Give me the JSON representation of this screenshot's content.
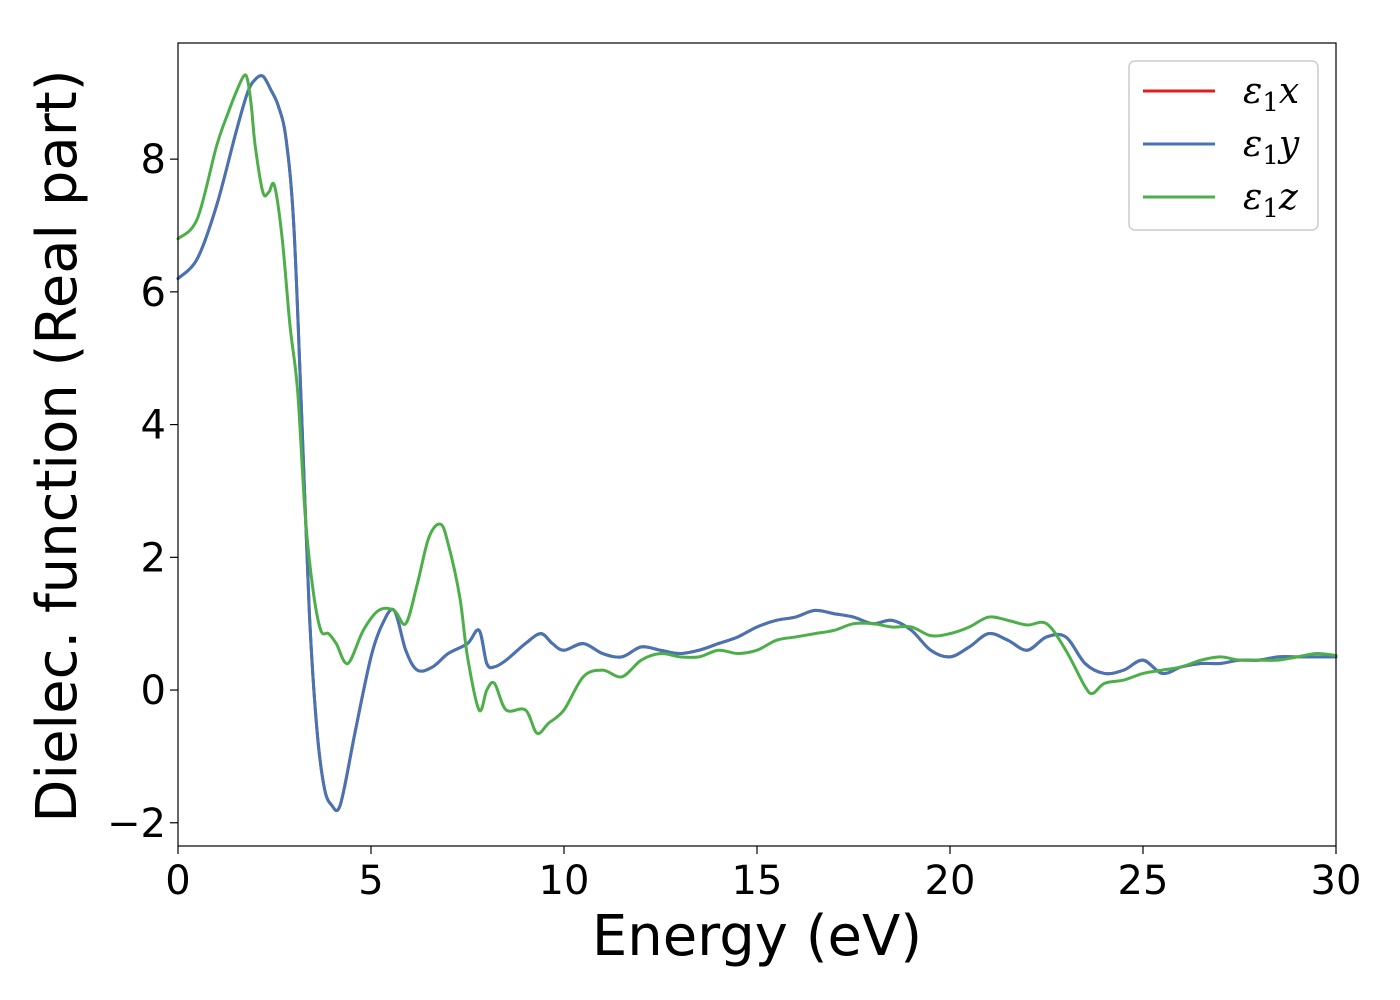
{
  "chart_data": {
    "type": "line",
    "title": "",
    "xlabel": "Energy (eV)",
    "ylabel": "Dielec. function (Real part)",
    "xlim": [
      0,
      30
    ],
    "ylim": [
      -2.35,
      9.75
    ],
    "xticks": [
      0,
      5,
      10,
      15,
      20,
      25,
      30
    ],
    "xtick_labels": [
      "0",
      "5",
      "10",
      "15",
      "20",
      "25",
      "30"
    ],
    "yticks": [
      -2,
      0,
      2,
      4,
      6,
      8
    ],
    "ytick_labels": [
      "−2",
      "0",
      "2",
      "4",
      "6",
      "8"
    ],
    "grid": false,
    "legend_position": "top-right",
    "series": [
      {
        "name": "ε1x",
        "legend_base": "ε",
        "legend_sub": "1",
        "legend_var": "x",
        "color": "#e41a1c",
        "x": [
          0,
          0.5,
          1.0,
          1.5,
          1.8,
          2.0,
          2.2,
          2.4,
          2.6,
          2.8,
          3.0,
          3.2,
          3.4,
          3.6,
          3.8,
          4.0,
          4.15,
          4.3,
          4.6,
          5.0,
          5.3,
          5.6,
          5.9,
          6.2,
          6.6,
          7.0,
          7.5,
          7.8,
          8.0,
          8.2,
          8.5,
          9.0,
          9.4,
          9.7,
          10.0,
          10.5,
          11.0,
          11.5,
          12.0,
          12.5,
          13.0,
          13.5,
          14.0,
          14.5,
          15.0,
          15.5,
          16.0,
          16.5,
          17.0,
          17.5,
          18.0,
          18.5,
          19.0,
          19.5,
          20.0,
          20.5,
          21.0,
          21.5,
          22.0,
          22.5,
          23.0,
          23.5,
          24.0,
          24.5,
          25.0,
          25.5,
          26.0,
          26.5,
          27.0,
          27.5,
          28.0,
          28.5,
          29.0,
          29.5,
          30.0
        ],
        "y": [
          6.2,
          6.5,
          7.3,
          8.4,
          9.0,
          9.2,
          9.25,
          9.05,
          8.8,
          8.3,
          7.0,
          4.2,
          1.2,
          -0.6,
          -1.5,
          -1.75,
          -1.8,
          -1.5,
          -0.6,
          0.5,
          1.0,
          1.2,
          0.6,
          0.3,
          0.35,
          0.55,
          0.7,
          0.9,
          0.4,
          0.35,
          0.45,
          0.7,
          0.85,
          0.7,
          0.6,
          0.7,
          0.55,
          0.5,
          0.65,
          0.6,
          0.55,
          0.6,
          0.7,
          0.8,
          0.95,
          1.05,
          1.1,
          1.2,
          1.15,
          1.1,
          1.0,
          1.05,
          0.9,
          0.6,
          0.5,
          0.65,
          0.85,
          0.75,
          0.6,
          0.8,
          0.8,
          0.4,
          0.25,
          0.3,
          0.45,
          0.25,
          0.35,
          0.4,
          0.4,
          0.45,
          0.45,
          0.5,
          0.5,
          0.5,
          0.5
        ]
      },
      {
        "name": "ε1y",
        "legend_base": "ε",
        "legend_sub": "1",
        "legend_var": "y",
        "color": "#4575b4",
        "x": [
          0,
          0.5,
          1.0,
          1.5,
          1.8,
          2.0,
          2.2,
          2.4,
          2.6,
          2.8,
          3.0,
          3.2,
          3.4,
          3.6,
          3.8,
          4.0,
          4.15,
          4.3,
          4.6,
          5.0,
          5.3,
          5.6,
          5.9,
          6.2,
          6.6,
          7.0,
          7.5,
          7.8,
          8.0,
          8.2,
          8.5,
          9.0,
          9.4,
          9.7,
          10.0,
          10.5,
          11.0,
          11.5,
          12.0,
          12.5,
          13.0,
          13.5,
          14.0,
          14.5,
          15.0,
          15.5,
          16.0,
          16.5,
          17.0,
          17.5,
          18.0,
          18.5,
          19.0,
          19.5,
          20.0,
          20.5,
          21.0,
          21.5,
          22.0,
          22.5,
          23.0,
          23.5,
          24.0,
          24.5,
          25.0,
          25.5,
          26.0,
          26.5,
          27.0,
          27.5,
          28.0,
          28.5,
          29.0,
          29.5,
          30.0
        ],
        "y": [
          6.2,
          6.5,
          7.3,
          8.4,
          9.0,
          9.2,
          9.25,
          9.05,
          8.8,
          8.3,
          7.0,
          4.2,
          1.2,
          -0.6,
          -1.5,
          -1.75,
          -1.8,
          -1.5,
          -0.6,
          0.5,
          1.0,
          1.2,
          0.6,
          0.3,
          0.35,
          0.55,
          0.7,
          0.9,
          0.4,
          0.35,
          0.45,
          0.7,
          0.85,
          0.7,
          0.6,
          0.7,
          0.55,
          0.5,
          0.65,
          0.6,
          0.55,
          0.6,
          0.7,
          0.8,
          0.95,
          1.05,
          1.1,
          1.2,
          1.15,
          1.1,
          1.0,
          1.05,
          0.9,
          0.6,
          0.5,
          0.65,
          0.85,
          0.75,
          0.6,
          0.8,
          0.8,
          0.4,
          0.25,
          0.3,
          0.45,
          0.25,
          0.35,
          0.4,
          0.4,
          0.45,
          0.45,
          0.5,
          0.5,
          0.5,
          0.5
        ]
      },
      {
        "name": "ε1z",
        "legend_base": "ε",
        "legend_sub": "1",
        "legend_var": "z",
        "color": "#4daf4a",
        "x": [
          0,
          0.5,
          1.0,
          1.3,
          1.5,
          1.7,
          1.8,
          1.9,
          2.0,
          2.2,
          2.35,
          2.5,
          2.7,
          2.9,
          3.1,
          3.3,
          3.5,
          3.7,
          3.9,
          4.1,
          4.4,
          4.8,
          5.2,
          5.6,
          5.9,
          6.2,
          6.5,
          6.8,
          7.0,
          7.3,
          7.5,
          7.8,
          8.0,
          8.2,
          8.5,
          9.0,
          9.3,
          9.6,
          10.0,
          10.5,
          11.0,
          11.5,
          12.0,
          12.5,
          13.0,
          13.5,
          14.0,
          14.5,
          15.0,
          15.5,
          16.0,
          16.5,
          17.0,
          17.5,
          18.0,
          18.5,
          19.0,
          19.5,
          20.0,
          20.5,
          21.0,
          21.5,
          22.0,
          22.5,
          23.0,
          23.5,
          23.7,
          24.0,
          24.5,
          25.0,
          25.5,
          26.0,
          26.5,
          27.0,
          27.5,
          28.0,
          28.5,
          29.0,
          29.5,
          30.0
        ],
        "y": [
          6.8,
          7.1,
          8.2,
          8.7,
          9.0,
          9.25,
          9.2,
          8.8,
          8.2,
          7.5,
          7.5,
          7.6,
          6.8,
          5.5,
          4.5,
          2.6,
          1.5,
          0.9,
          0.85,
          0.7,
          0.4,
          0.9,
          1.2,
          1.2,
          1.0,
          1.6,
          2.3,
          2.5,
          2.2,
          1.4,
          0.5,
          -0.3,
          0.0,
          0.1,
          -0.3,
          -0.3,
          -0.65,
          -0.5,
          -0.3,
          0.2,
          0.3,
          0.2,
          0.45,
          0.55,
          0.5,
          0.5,
          0.6,
          0.55,
          0.6,
          0.75,
          0.8,
          0.85,
          0.9,
          1.0,
          1.0,
          0.95,
          0.95,
          0.82,
          0.85,
          0.95,
          1.1,
          1.05,
          0.98,
          1.0,
          0.6,
          0.05,
          -0.05,
          0.1,
          0.15,
          0.25,
          0.3,
          0.35,
          0.45,
          0.5,
          0.45,
          0.45,
          0.45,
          0.5,
          0.55,
          0.52
        ]
      }
    ]
  }
}
